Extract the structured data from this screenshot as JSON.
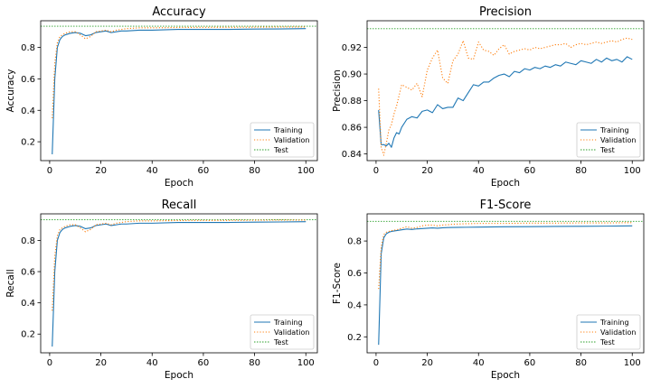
{
  "colors": {
    "training": "#1f77b4",
    "validation": "#ff7f0e",
    "test": "#2ca02c"
  },
  "chart_data": [
    {
      "type": "line",
      "title": "Accuracy",
      "xlabel": "Epoch",
      "ylabel": "Accuracy",
      "xlim": [
        -3.5,
        104.5
      ],
      "ylim": [
        0.08,
        0.97
      ],
      "xticks": [
        0,
        20,
        40,
        60,
        80,
        100
      ],
      "xtick_labels": [
        "0",
        "20",
        "40",
        "60",
        "80",
        "100"
      ],
      "yticks": [
        0.2,
        0.4,
        0.6,
        0.8
      ],
      "ytick_labels": [
        "0.2",
        "0.4",
        "0.6",
        "0.8"
      ],
      "legend": [
        "Training",
        "Validation",
        "Test"
      ],
      "legend_position": "lower-right",
      "test_value": 0.935,
      "series": [
        {
          "name": "Training",
          "style": "solid",
          "x": [
            1,
            2,
            3,
            4,
            5,
            6,
            8,
            10,
            12,
            14,
            16,
            18,
            20,
            22,
            24,
            26,
            28,
            30,
            35,
            40,
            50,
            60,
            70,
            80,
            90,
            100
          ],
          "y": [
            0.12,
            0.6,
            0.8,
            0.85,
            0.87,
            0.88,
            0.89,
            0.895,
            0.89,
            0.875,
            0.88,
            0.895,
            0.9,
            0.905,
            0.895,
            0.9,
            0.905,
            0.905,
            0.91,
            0.91,
            0.915,
            0.915,
            0.915,
            0.917,
            0.918,
            0.92
          ]
        },
        {
          "name": "Validation",
          "style": "dotted",
          "x": [
            1,
            2,
            3,
            4,
            5,
            6,
            8,
            10,
            12,
            14,
            16,
            18,
            20,
            22,
            24,
            26,
            28,
            30,
            35,
            40,
            50,
            60,
            70,
            80,
            90,
            100
          ],
          "y": [
            0.35,
            0.7,
            0.83,
            0.87,
            0.88,
            0.89,
            0.9,
            0.9,
            0.88,
            0.855,
            0.87,
            0.9,
            0.905,
            0.91,
            0.9,
            0.91,
            0.915,
            0.92,
            0.925,
            0.925,
            0.927,
            0.928,
            0.928,
            0.929,
            0.93,
            0.93
          ]
        }
      ]
    },
    {
      "type": "line",
      "title": "Precision",
      "xlabel": "Epoch",
      "ylabel": "Precision",
      "xlim": [
        -3.5,
        104.5
      ],
      "ylim": [
        0.835,
        0.94
      ],
      "xticks": [
        0,
        20,
        40,
        60,
        80,
        100
      ],
      "xtick_labels": [
        "0",
        "20",
        "40",
        "60",
        "80",
        "100"
      ],
      "yticks": [
        0.84,
        0.86,
        0.88,
        0.9,
        0.92
      ],
      "ytick_labels": [
        "0.84",
        "0.86",
        "0.88",
        "0.90",
        "0.92"
      ],
      "legend": [
        "Training",
        "Validation",
        "Test"
      ],
      "legend_position": "lower-right",
      "test_value": 0.934,
      "series": [
        {
          "name": "Training",
          "style": "solid",
          "x": [
            1,
            2,
            3,
            4,
            5,
            6,
            7,
            8,
            9,
            10,
            12,
            14,
            16,
            18,
            20,
            22,
            24,
            26,
            28,
            30,
            32,
            34,
            36,
            38,
            40,
            42,
            44,
            46,
            48,
            50,
            52,
            54,
            56,
            58,
            60,
            62,
            64,
            66,
            68,
            70,
            72,
            74,
            76,
            78,
            80,
            82,
            84,
            86,
            88,
            90,
            92,
            94,
            96,
            98,
            100
          ],
          "y": [
            0.873,
            0.847,
            0.847,
            0.846,
            0.848,
            0.845,
            0.852,
            0.856,
            0.855,
            0.86,
            0.866,
            0.868,
            0.867,
            0.872,
            0.873,
            0.871,
            0.877,
            0.874,
            0.875,
            0.875,
            0.882,
            0.88,
            0.886,
            0.892,
            0.891,
            0.894,
            0.894,
            0.897,
            0.899,
            0.9,
            0.898,
            0.902,
            0.901,
            0.904,
            0.903,
            0.905,
            0.904,
            0.906,
            0.905,
            0.907,
            0.906,
            0.909,
            0.908,
            0.907,
            0.91,
            0.909,
            0.908,
            0.911,
            0.909,
            0.912,
            0.91,
            0.911,
            0.909,
            0.913,
            0.911
          ]
        },
        {
          "name": "Validation",
          "style": "dotted",
          "x": [
            1,
            2,
            3,
            4,
            5,
            6,
            7,
            8,
            9,
            10,
            12,
            14,
            16,
            18,
            20,
            22,
            24,
            26,
            28,
            30,
            32,
            34,
            36,
            38,
            40,
            42,
            44,
            46,
            48,
            50,
            52,
            54,
            56,
            58,
            60,
            62,
            64,
            66,
            68,
            70,
            72,
            74,
            76,
            78,
            80,
            82,
            84,
            86,
            88,
            90,
            92,
            94,
            96,
            98,
            100
          ],
          "y": [
            0.889,
            0.845,
            0.839,
            0.848,
            0.858,
            0.862,
            0.87,
            0.876,
            0.884,
            0.892,
            0.89,
            0.888,
            0.893,
            0.883,
            0.903,
            0.912,
            0.918,
            0.897,
            0.893,
            0.91,
            0.915,
            0.925,
            0.912,
            0.911,
            0.924,
            0.918,
            0.917,
            0.914,
            0.919,
            0.922,
            0.915,
            0.917,
            0.918,
            0.919,
            0.918,
            0.92,
            0.919,
            0.92,
            0.921,
            0.922,
            0.922,
            0.923,
            0.92,
            0.922,
            0.923,
            0.922,
            0.923,
            0.924,
            0.923,
            0.924,
            0.925,
            0.924,
            0.926,
            0.927,
            0.926
          ]
        }
      ]
    },
    {
      "type": "line",
      "title": "Recall",
      "xlabel": "Epoch",
      "ylabel": "Recall",
      "xlim": [
        -3.5,
        104.5
      ],
      "ylim": [
        0.08,
        0.97
      ],
      "xticks": [
        0,
        20,
        40,
        60,
        80,
        100
      ],
      "xtick_labels": [
        "0",
        "20",
        "40",
        "60",
        "80",
        "100"
      ],
      "yticks": [
        0.2,
        0.4,
        0.6,
        0.8
      ],
      "ytick_labels": [
        "0.2",
        "0.4",
        "0.6",
        "0.8"
      ],
      "legend": [
        "Training",
        "Validation",
        "Test"
      ],
      "legend_position": "lower-right",
      "test_value": 0.932,
      "series": [
        {
          "name": "Training",
          "style": "solid",
          "x": [
            1,
            2,
            3,
            4,
            5,
            6,
            8,
            10,
            12,
            14,
            16,
            18,
            20,
            22,
            24,
            26,
            28,
            30,
            35,
            40,
            50,
            60,
            70,
            80,
            90,
            100
          ],
          "y": [
            0.12,
            0.6,
            0.8,
            0.85,
            0.87,
            0.88,
            0.89,
            0.895,
            0.89,
            0.875,
            0.88,
            0.895,
            0.9,
            0.905,
            0.895,
            0.9,
            0.905,
            0.905,
            0.91,
            0.91,
            0.915,
            0.915,
            0.915,
            0.917,
            0.918,
            0.92
          ]
        },
        {
          "name": "Validation",
          "style": "dotted",
          "x": [
            1,
            2,
            3,
            4,
            5,
            6,
            8,
            10,
            12,
            14,
            16,
            18,
            20,
            22,
            24,
            26,
            28,
            30,
            35,
            40,
            50,
            60,
            70,
            80,
            90,
            100
          ],
          "y": [
            0.35,
            0.7,
            0.83,
            0.87,
            0.88,
            0.89,
            0.9,
            0.9,
            0.88,
            0.855,
            0.87,
            0.9,
            0.905,
            0.91,
            0.9,
            0.91,
            0.915,
            0.92,
            0.925,
            0.925,
            0.927,
            0.928,
            0.928,
            0.929,
            0.93,
            0.93
          ]
        }
      ]
    },
    {
      "type": "line",
      "title": "F1-Score",
      "xlabel": "Epoch",
      "ylabel": "F1-Score",
      "xlim": [
        -3.5,
        104.5
      ],
      "ylim": [
        0.1,
        0.97
      ],
      "xticks": [
        0,
        20,
        40,
        60,
        80,
        100
      ],
      "xtick_labels": [
        "0",
        "20",
        "40",
        "60",
        "80",
        "100"
      ],
      "yticks": [
        0.2,
        0.4,
        0.6,
        0.8
      ],
      "ytick_labels": [
        "0.2",
        "0.4",
        "0.6",
        "0.8"
      ],
      "legend": [
        "Training",
        "Validation",
        "Test"
      ],
      "legend_position": "lower-right",
      "test_value": 0.923,
      "series": [
        {
          "name": "Training",
          "style": "solid",
          "x": [
            1,
            2,
            3,
            4,
            5,
            6,
            8,
            10,
            12,
            14,
            16,
            18,
            20,
            22,
            24,
            26,
            28,
            30,
            35,
            40,
            50,
            60,
            70,
            80,
            90,
            100
          ],
          "y": [
            0.15,
            0.72,
            0.82,
            0.845,
            0.855,
            0.86,
            0.865,
            0.87,
            0.875,
            0.872,
            0.876,
            0.878,
            0.88,
            0.882,
            0.88,
            0.883,
            0.884,
            0.885,
            0.886,
            0.887,
            0.889,
            0.89,
            0.891,
            0.892,
            0.893,
            0.895
          ]
        },
        {
          "name": "Validation",
          "style": "dotted",
          "x": [
            1,
            2,
            3,
            4,
            5,
            6,
            8,
            10,
            12,
            14,
            16,
            18,
            20,
            22,
            24,
            26,
            28,
            30,
            35,
            40,
            50,
            60,
            70,
            80,
            90,
            100
          ],
          "y": [
            0.5,
            0.76,
            0.84,
            0.855,
            0.86,
            0.865,
            0.87,
            0.88,
            0.89,
            0.88,
            0.885,
            0.895,
            0.9,
            0.9,
            0.895,
            0.9,
            0.902,
            0.905,
            0.908,
            0.91,
            0.91,
            0.912,
            0.912,
            0.913,
            0.913,
            0.915
          ]
        }
      ]
    }
  ]
}
